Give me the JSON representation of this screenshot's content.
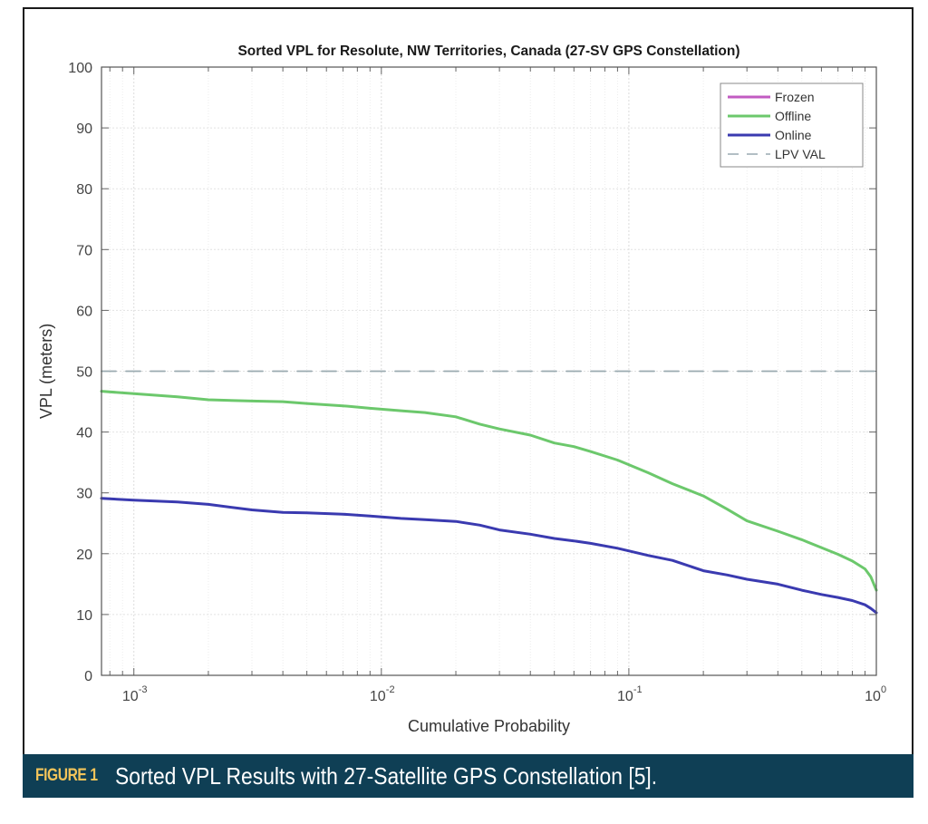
{
  "caption": {
    "label": "FIGURE 1",
    "text": "Sorted VPL Results with 27-Satellite GPS Constellation [5]."
  },
  "chart_data": {
    "type": "line",
    "title": "Sorted VPL for Resolute, NW Territories, Canada (27-SV GPS Constellation)",
    "xlabel": "Cumulative Probability",
    "ylabel": "VPL (meters)",
    "xscale": "log",
    "xlim": [
      0.00074,
      1
    ],
    "ylim": [
      0,
      100
    ],
    "grid": true,
    "legend_position": "top-right",
    "x_ticks": [
      {
        "value": 0.001,
        "base": "10",
        "exp": "-3"
      },
      {
        "value": 0.01,
        "base": "10",
        "exp": "-2"
      },
      {
        "value": 0.1,
        "base": "10",
        "exp": "-1"
      },
      {
        "value": 1,
        "base": "10",
        "exp": "0"
      }
    ],
    "y_ticks": [
      0,
      10,
      20,
      30,
      40,
      50,
      60,
      70,
      80,
      90,
      100
    ],
    "series": [
      {
        "name": "Frozen",
        "color": "#c25bc2",
        "style": "solid",
        "x": [],
        "y": []
      },
      {
        "name": "Offline",
        "color": "#6cc86c",
        "style": "solid",
        "x": [
          0.00074,
          0.001,
          0.0015,
          0.002,
          0.003,
          0.004,
          0.005,
          0.007,
          0.009,
          0.012,
          0.015,
          0.02,
          0.025,
          0.03,
          0.04,
          0.05,
          0.06,
          0.07,
          0.09,
          0.12,
          0.15,
          0.2,
          0.25,
          0.3,
          0.4,
          0.5,
          0.6,
          0.7,
          0.8,
          0.9,
          0.95,
          1.0
        ],
        "y": [
          46.7,
          46.3,
          45.8,
          45.3,
          45.1,
          45.0,
          44.7,
          44.3,
          43.9,
          43.5,
          43.2,
          42.5,
          41.3,
          40.5,
          39.5,
          38.2,
          37.6,
          36.8,
          35.4,
          33.3,
          31.5,
          29.5,
          27.3,
          25.4,
          23.7,
          22.3,
          21.0,
          19.9,
          18.8,
          17.5,
          16.2,
          14.0
        ]
      },
      {
        "name": "Online",
        "color": "#3a3ab0",
        "style": "solid",
        "x": [
          0.00074,
          0.001,
          0.0015,
          0.002,
          0.003,
          0.004,
          0.005,
          0.007,
          0.009,
          0.012,
          0.015,
          0.02,
          0.025,
          0.03,
          0.04,
          0.05,
          0.06,
          0.07,
          0.09,
          0.12,
          0.15,
          0.2,
          0.25,
          0.3,
          0.4,
          0.5,
          0.6,
          0.7,
          0.8,
          0.9,
          0.95,
          1.0
        ],
        "y": [
          29.1,
          28.8,
          28.5,
          28.1,
          27.2,
          26.8,
          26.7,
          26.5,
          26.2,
          25.8,
          25.6,
          25.3,
          24.7,
          23.9,
          23.2,
          22.5,
          22.1,
          21.7,
          20.9,
          19.7,
          18.9,
          17.2,
          16.5,
          15.8,
          15.0,
          14.0,
          13.3,
          12.8,
          12.3,
          11.6,
          11.0,
          10.3
        ]
      },
      {
        "name": "LPV VAL",
        "color": "#9aaab0",
        "style": "dashed",
        "x": [
          0.00074,
          1.0
        ],
        "y": [
          50,
          50
        ]
      }
    ]
  }
}
